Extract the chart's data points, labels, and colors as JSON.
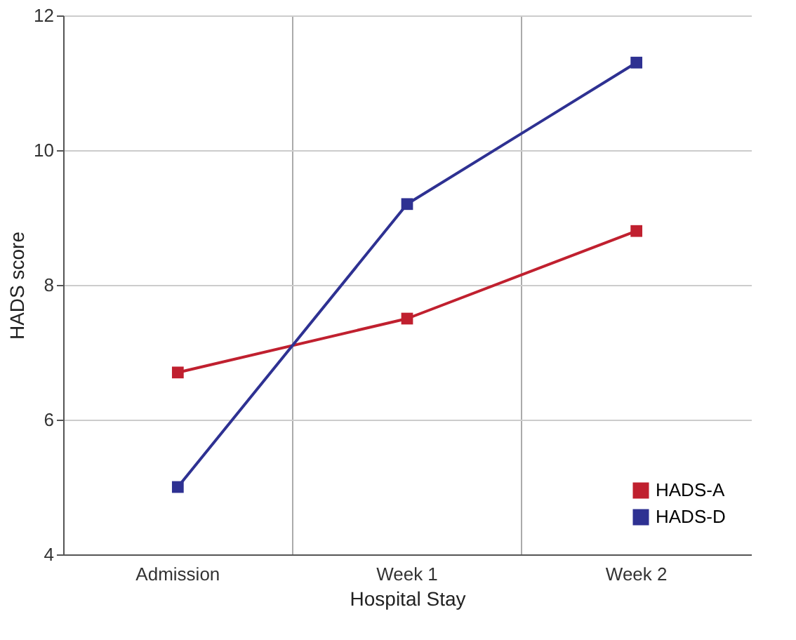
{
  "chart_data": {
    "type": "line",
    "xlabel": "Hospital Stay",
    "ylabel": "HADS score",
    "categories": [
      "Admission",
      "Week 1",
      "Week 2"
    ],
    "series": [
      {
        "name": "HADS-A",
        "color": "#c0202f",
        "values": [
          6.7,
          7.5,
          8.8
        ]
      },
      {
        "name": "HADS-D",
        "color": "#2e3192",
        "values": [
          5.0,
          9.2,
          11.3
        ]
      }
    ],
    "ylim": [
      4,
      12
    ],
    "yticks": [
      4,
      6,
      8,
      10,
      12
    ],
    "grid": true,
    "legend": "bottom right",
    "marker": "square",
    "line_style": "solid"
  }
}
